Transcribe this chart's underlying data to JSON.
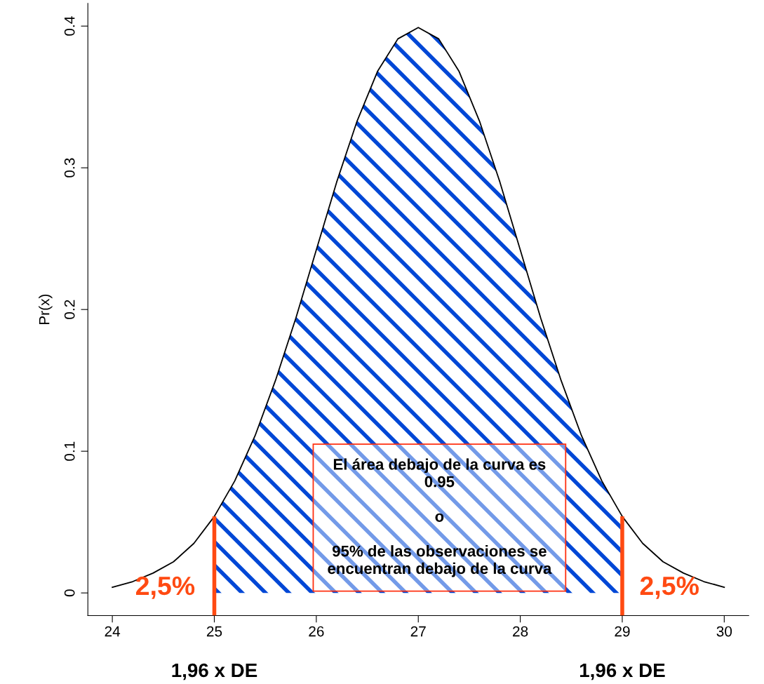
{
  "chart_data": {
    "type": "line",
    "ylabel": "Pr(x)",
    "series": [
      {
        "color": "#000000",
        "x": [
          24,
          24.2,
          24.4,
          24.6,
          24.8,
          25,
          25.2,
          25.4,
          25.6,
          25.8,
          26,
          26.2,
          26.4,
          26.6,
          26.8,
          27,
          27.2,
          27.4,
          27.6,
          27.8,
          28,
          28.2,
          28.4,
          28.6,
          28.8,
          29,
          29.2,
          29.4,
          29.6,
          29.8,
          30
        ],
        "values": [
          0.004,
          0.008,
          0.014,
          0.022,
          0.035,
          0.054,
          0.079,
          0.111,
          0.15,
          0.194,
          0.242,
          0.29,
          0.333,
          0.368,
          0.391,
          0.399,
          0.391,
          0.368,
          0.333,
          0.29,
          0.242,
          0.194,
          0.15,
          0.111,
          0.079,
          0.054,
          0.035,
          0.022,
          0.014,
          0.008,
          0.004
        ]
      },
      {
        "type": "area",
        "color": "#0047d6",
        "x": [
          25,
          25.2,
          25.4,
          25.6,
          25.8,
          26,
          26.2,
          26.4,
          26.6,
          26.8,
          27,
          27.2,
          27.4,
          27.6,
          27.8,
          28,
          28.2,
          28.4,
          28.6,
          28.8,
          29
        ],
        "values": [
          0.054,
          0.079,
          0.111,
          0.15,
          0.194,
          0.242,
          0.29,
          0.333,
          0.368,
          0.391,
          0.399,
          0.391,
          0.368,
          0.333,
          0.29,
          0.242,
          0.194,
          0.15,
          0.111,
          0.079,
          0.054
        ]
      }
    ],
    "xlim": [
      23.76,
      30.24
    ],
    "ylim": [
      -0.016,
      0.416
    ],
    "xticks": [
      24,
      25,
      26,
      27,
      28,
      29,
      30
    ],
    "yticks": [
      0,
      0.1,
      0.2,
      0.3,
      0.4
    ],
    "grid": false,
    "legend": false,
    "marker": "none",
    "ref_lines": [
      {
        "axis": "x",
        "value": 25,
        "label": "1,96 x DE",
        "color": "#ff4a12"
      },
      {
        "axis": "x",
        "value": 29,
        "label": "1,96 x DE",
        "color": "#ff4a12"
      }
    ],
    "annotations": [
      "2,5%",
      "2,5%",
      "El área debajo de la curva es\n0.95\n\no\n\n95% de las observaciones se\nencuentran debajo de la curva"
    ]
  }
}
